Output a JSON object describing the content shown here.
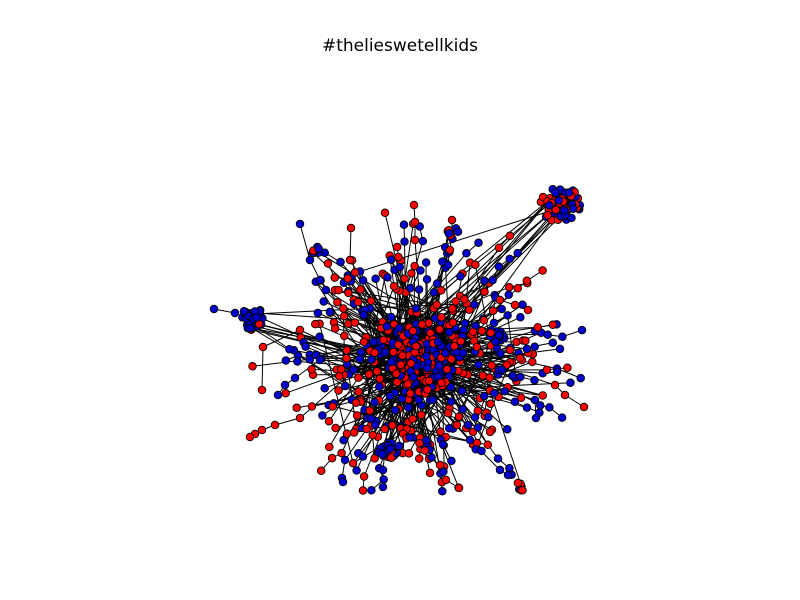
{
  "figure": {
    "title": "#thelieswetellkids"
  },
  "colors": {
    "node_red": "#ff0000",
    "node_blue": "#0000cc",
    "node_stroke": "#000000",
    "edge": "#000000",
    "background": "#ffffff"
  },
  "graph": {
    "type": "network",
    "node_color_groups": [
      "red",
      "blue"
    ],
    "edges_visible": true
  }
}
